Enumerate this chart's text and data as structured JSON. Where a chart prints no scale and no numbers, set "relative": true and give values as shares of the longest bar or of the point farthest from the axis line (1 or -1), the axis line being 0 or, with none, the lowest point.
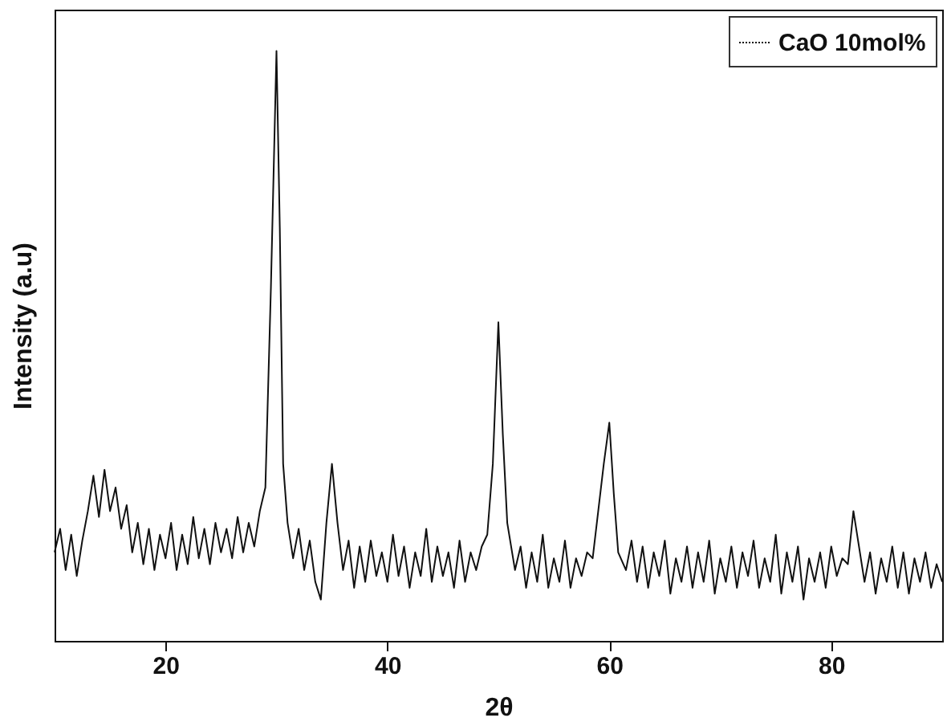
{
  "chart_data": {
    "type": "line",
    "xlabel": "2θ",
    "ylabel": "Intensity (a.u)",
    "relative": true,
    "xlim": [
      10,
      90
    ],
    "xticks": [
      20,
      40,
      60,
      80
    ],
    "tick_labels": "x",
    "legend": "top right",
    "series": [
      {
        "name": "CaO 10mol%",
        "color": "#111111",
        "x": [
          10,
          10.5,
          11,
          11.5,
          12,
          12.5,
          13,
          13.5,
          14,
          14.5,
          15,
          15.5,
          16,
          16.5,
          17,
          17.5,
          18,
          18.5,
          19,
          19.5,
          20,
          20.5,
          21,
          21.5,
          22,
          22.5,
          23,
          23.5,
          24,
          24.5,
          25,
          25.5,
          26,
          26.5,
          27,
          27.5,
          28,
          28.5,
          29,
          29.5,
          30,
          30.3,
          30.6,
          31,
          31.5,
          32,
          32.5,
          33,
          33.5,
          34,
          34.5,
          35,
          35.5,
          36,
          36.5,
          37,
          37.5,
          38,
          38.5,
          39,
          39.5,
          40,
          40.5,
          41,
          41.5,
          42,
          42.5,
          43,
          43.5,
          44,
          44.5,
          45,
          45.5,
          46,
          46.5,
          47,
          47.5,
          48,
          48.5,
          49,
          49.5,
          50,
          50.4,
          50.8,
          51.5,
          52,
          52.5,
          53,
          53.5,
          54,
          54.5,
          55,
          55.5,
          56,
          56.5,
          57,
          57.5,
          58,
          58.5,
          59,
          59.5,
          60,
          60.4,
          60.8,
          61.5,
          62,
          62.5,
          63,
          63.5,
          64,
          64.5,
          65,
          65.5,
          66,
          66.5,
          67,
          67.5,
          68,
          68.5,
          69,
          69.5,
          70,
          70.5,
          71,
          71.5,
          72,
          72.5,
          73,
          73.5,
          74,
          74.5,
          75,
          75.5,
          76,
          76.5,
          77,
          77.5,
          78,
          78.5,
          79,
          79.5,
          80,
          80.5,
          81,
          81.5,
          82,
          82.5,
          83,
          83.5,
          84,
          84.5,
          85,
          85.5,
          86,
          86.5,
          87,
          87.5,
          88,
          88.5,
          89,
          89.5,
          90
        ],
        "values": [
          0.15,
          0.19,
          0.12,
          0.18,
          0.11,
          0.17,
          0.22,
          0.28,
          0.21,
          0.29,
          0.22,
          0.26,
          0.19,
          0.23,
          0.15,
          0.2,
          0.13,
          0.19,
          0.12,
          0.18,
          0.14,
          0.2,
          0.12,
          0.18,
          0.13,
          0.21,
          0.14,
          0.19,
          0.13,
          0.2,
          0.15,
          0.19,
          0.14,
          0.21,
          0.15,
          0.2,
          0.16,
          0.22,
          0.26,
          0.6,
          1.0,
          0.7,
          0.3,
          0.2,
          0.14,
          0.19,
          0.12,
          0.17,
          0.1,
          0.07,
          0.2,
          0.3,
          0.2,
          0.12,
          0.17,
          0.09,
          0.16,
          0.1,
          0.17,
          0.11,
          0.15,
          0.1,
          0.18,
          0.11,
          0.16,
          0.09,
          0.15,
          0.11,
          0.19,
          0.1,
          0.16,
          0.11,
          0.15,
          0.09,
          0.17,
          0.1,
          0.15,
          0.12,
          0.16,
          0.18,
          0.3,
          0.54,
          0.35,
          0.2,
          0.12,
          0.16,
          0.09,
          0.15,
          0.1,
          0.18,
          0.09,
          0.14,
          0.1,
          0.17,
          0.09,
          0.14,
          0.11,
          0.15,
          0.14,
          0.22,
          0.3,
          0.37,
          0.25,
          0.15,
          0.12,
          0.17,
          0.1,
          0.16,
          0.09,
          0.15,
          0.11,
          0.17,
          0.08,
          0.14,
          0.1,
          0.16,
          0.09,
          0.15,
          0.1,
          0.17,
          0.08,
          0.14,
          0.1,
          0.16,
          0.09,
          0.15,
          0.11,
          0.17,
          0.09,
          0.14,
          0.1,
          0.18,
          0.08,
          0.15,
          0.1,
          0.16,
          0.07,
          0.14,
          0.1,
          0.15,
          0.09,
          0.16,
          0.11,
          0.14,
          0.13,
          0.22,
          0.16,
          0.1,
          0.15,
          0.08,
          0.14,
          0.1,
          0.16,
          0.09,
          0.15,
          0.08,
          0.14,
          0.1,
          0.15,
          0.09,
          0.13,
          0.1
        ]
      }
    ]
  }
}
